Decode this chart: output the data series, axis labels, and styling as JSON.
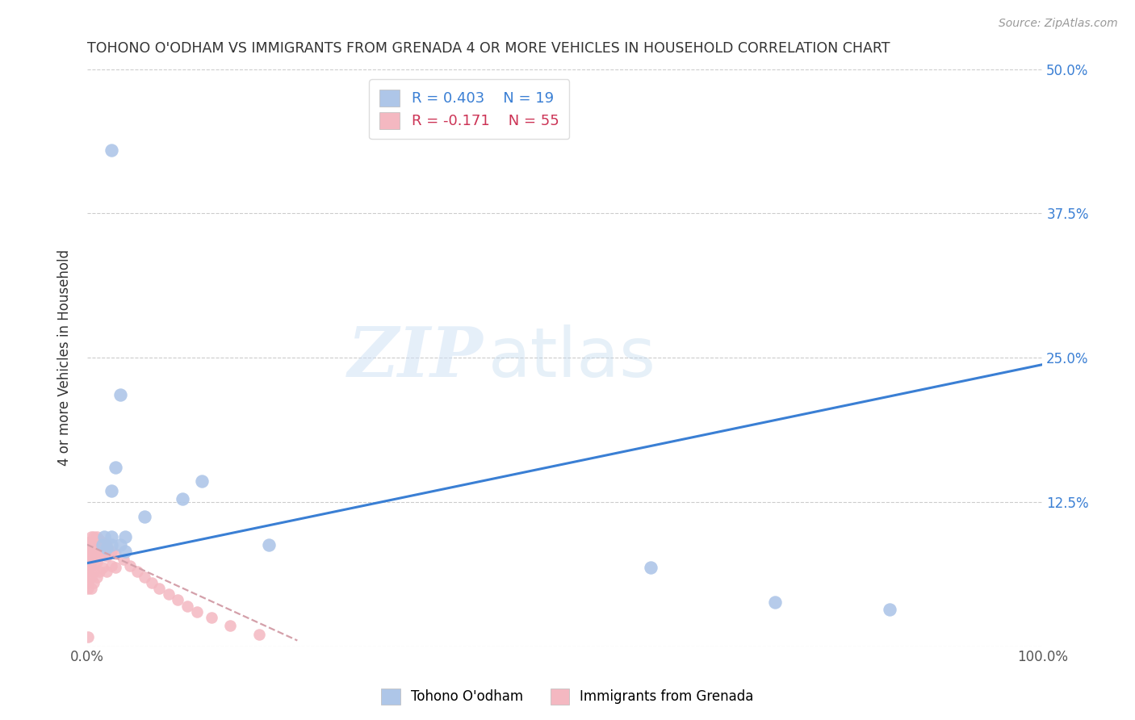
{
  "title": "TOHONO O'ODHAM VS IMMIGRANTS FROM GRENADA 4 OR MORE VEHICLES IN HOUSEHOLD CORRELATION CHART",
  "source": "Source: ZipAtlas.com",
  "ylabel": "4 or more Vehicles in Household",
  "xlim": [
    0,
    1.0
  ],
  "ylim": [
    0,
    0.5
  ],
  "xticks": [
    0.0,
    0.25,
    0.5,
    0.75,
    1.0
  ],
  "xticklabels": [
    "0.0%",
    "",
    "",
    "",
    "100.0%"
  ],
  "yticks": [
    0.0,
    0.125,
    0.25,
    0.375,
    0.5
  ],
  "yticklabels": [
    "",
    "12.5%",
    "25.0%",
    "37.5%",
    "50.0%"
  ],
  "color_blue": "#aec6e8",
  "color_pink": "#f4b8c1",
  "line_color_blue": "#3a7fd4",
  "line_color_pink": "#d4a0aa",
  "watermark_zip": "ZIP",
  "watermark_atlas": "atlas",
  "blue_x": [
    0.018,
    0.025,
    0.03,
    0.025,
    0.02,
    0.035,
    0.04,
    0.06,
    0.025,
    0.04,
    0.1,
    0.12,
    0.19,
    0.59,
    0.72,
    0.84,
    0.035,
    0.025,
    0.016
  ],
  "blue_y": [
    0.095,
    0.095,
    0.155,
    0.135,
    0.085,
    0.088,
    0.095,
    0.112,
    0.088,
    0.082,
    0.128,
    0.143,
    0.088,
    0.068,
    0.038,
    0.032,
    0.218,
    0.43,
    0.088
  ],
  "pink_x": [
    0.001,
    0.001,
    0.001,
    0.001,
    0.001,
    0.001,
    0.001,
    0.001,
    0.001,
    0.001,
    0.004,
    0.004,
    0.004,
    0.004,
    0.004,
    0.004,
    0.004,
    0.007,
    0.007,
    0.007,
    0.007,
    0.007,
    0.007,
    0.01,
    0.01,
    0.01,
    0.01,
    0.01,
    0.013,
    0.013,
    0.013,
    0.013,
    0.016,
    0.016,
    0.016,
    0.02,
    0.02,
    0.02,
    0.025,
    0.025,
    0.03,
    0.03,
    0.038,
    0.045,
    0.052,
    0.06,
    0.068,
    0.075,
    0.085,
    0.095,
    0.105,
    0.115,
    0.13,
    0.15,
    0.18
  ],
  "pink_y": [
    0.09,
    0.085,
    0.08,
    0.075,
    0.07,
    0.065,
    0.06,
    0.055,
    0.05,
    0.008,
    0.095,
    0.09,
    0.085,
    0.078,
    0.07,
    0.06,
    0.05,
    0.095,
    0.088,
    0.082,
    0.075,
    0.065,
    0.055,
    0.095,
    0.088,
    0.082,
    0.073,
    0.06,
    0.092,
    0.085,
    0.078,
    0.065,
    0.09,
    0.08,
    0.068,
    0.088,
    0.078,
    0.065,
    0.082,
    0.07,
    0.08,
    0.068,
    0.075,
    0.07,
    0.065,
    0.06,
    0.055,
    0.05,
    0.045,
    0.04,
    0.035,
    0.03,
    0.025,
    0.018,
    0.01
  ],
  "blue_line_x0": 0.0,
  "blue_line_y0": 0.072,
  "blue_line_x1": 1.0,
  "blue_line_y1": 0.244,
  "pink_line_x0": 0.0,
  "pink_line_y0": 0.088,
  "pink_line_x1": 0.22,
  "pink_line_y1": 0.005
}
